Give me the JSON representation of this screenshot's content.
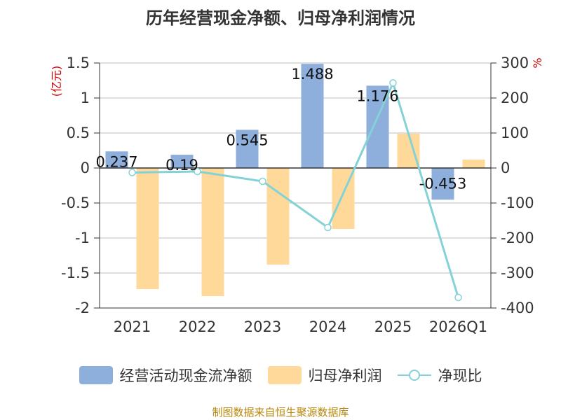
{
  "title": "历年经营现金净额、归母净利润情况",
  "source_note": "制图数据来自恒生聚源数据库",
  "colors": {
    "bar_cash": "#8eaedb",
    "bar_profit": "#ffd99a",
    "line_ratio": "#84d2d6",
    "unit_text": "#d00000",
    "axis": "#333333",
    "grid": "#bdbdbd"
  },
  "chart_data": {
    "type": "bar",
    "title": "历年经营现金净额、归母净利润情况",
    "categories": [
      "2021",
      "2022",
      "2023",
      "2024",
      "2025",
      "2026Q1"
    ],
    "left_axis": {
      "unit": "(亿元)",
      "ylim": [
        -2,
        1.5
      ],
      "ticks": [
        "1.5",
        "1",
        "0.5",
        "0",
        "-0.5",
        "-1",
        "-1.5",
        "-2"
      ],
      "tick_values": [
        1.5,
        1,
        0.5,
        0,
        -0.5,
        -1,
        -1.5,
        -2
      ]
    },
    "right_axis": {
      "unit": "%",
      "ylim": [
        -400,
        300
      ],
      "ticks": [
        "300",
        "200",
        "100",
        "0",
        "-100",
        "-200",
        "-300",
        "-400"
      ],
      "tick_values": [
        300,
        200,
        100,
        0,
        -100,
        -200,
        -300,
        -400
      ]
    },
    "grid": true,
    "legend_position": "bottom",
    "series": [
      {
        "name": "经营活动现金流净额",
        "type": "bar",
        "axis": "left",
        "values": [
          0.237,
          0.19,
          0.545,
          1.488,
          1.176,
          -0.453
        ],
        "labels": [
          "0.237",
          "0.19",
          "0.545",
          "1.488",
          "1.176",
          "-0.453"
        ]
      },
      {
        "name": "归母净利润",
        "type": "bar",
        "axis": "left",
        "values": [
          -1.73,
          -1.83,
          -1.38,
          -0.87,
          0.49,
          0.12
        ]
      },
      {
        "name": "净现比",
        "type": "line",
        "axis": "right",
        "values": [
          -13,
          -10,
          -38,
          -170,
          243,
          -370
        ]
      }
    ]
  }
}
